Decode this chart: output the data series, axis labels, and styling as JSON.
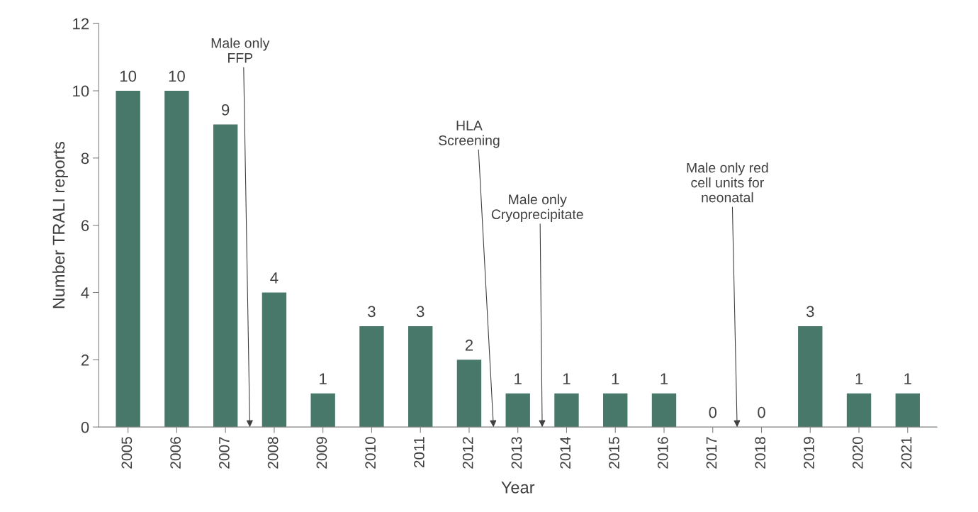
{
  "chart_data": {
    "type": "bar",
    "xlabel": "Year",
    "ylabel": "Number TRALI reports",
    "categories": [
      "2005",
      "2006",
      "2007",
      "2008",
      "2009",
      "2010",
      "2011",
      "2012",
      "2013",
      "2014",
      "2015",
      "2016",
      "2017",
      "2018",
      "2019",
      "2020",
      "2021"
    ],
    "values": [
      10,
      10,
      9,
      4,
      1,
      3,
      3,
      2,
      1,
      1,
      1,
      1,
      0,
      0,
      3,
      1,
      1
    ],
    "color": "#48786a",
    "ylim": [
      0,
      12
    ],
    "yticks": [
      0,
      2,
      4,
      6,
      8,
      10,
      12
    ],
    "data_labels": true,
    "grid": false,
    "legend": false,
    "annotations": [
      "Male only\nFFP",
      "HLA\nScreening",
      "Male only\nCryoprecipitate",
      "Male only red\ncell units for\nneonatal"
    ]
  }
}
